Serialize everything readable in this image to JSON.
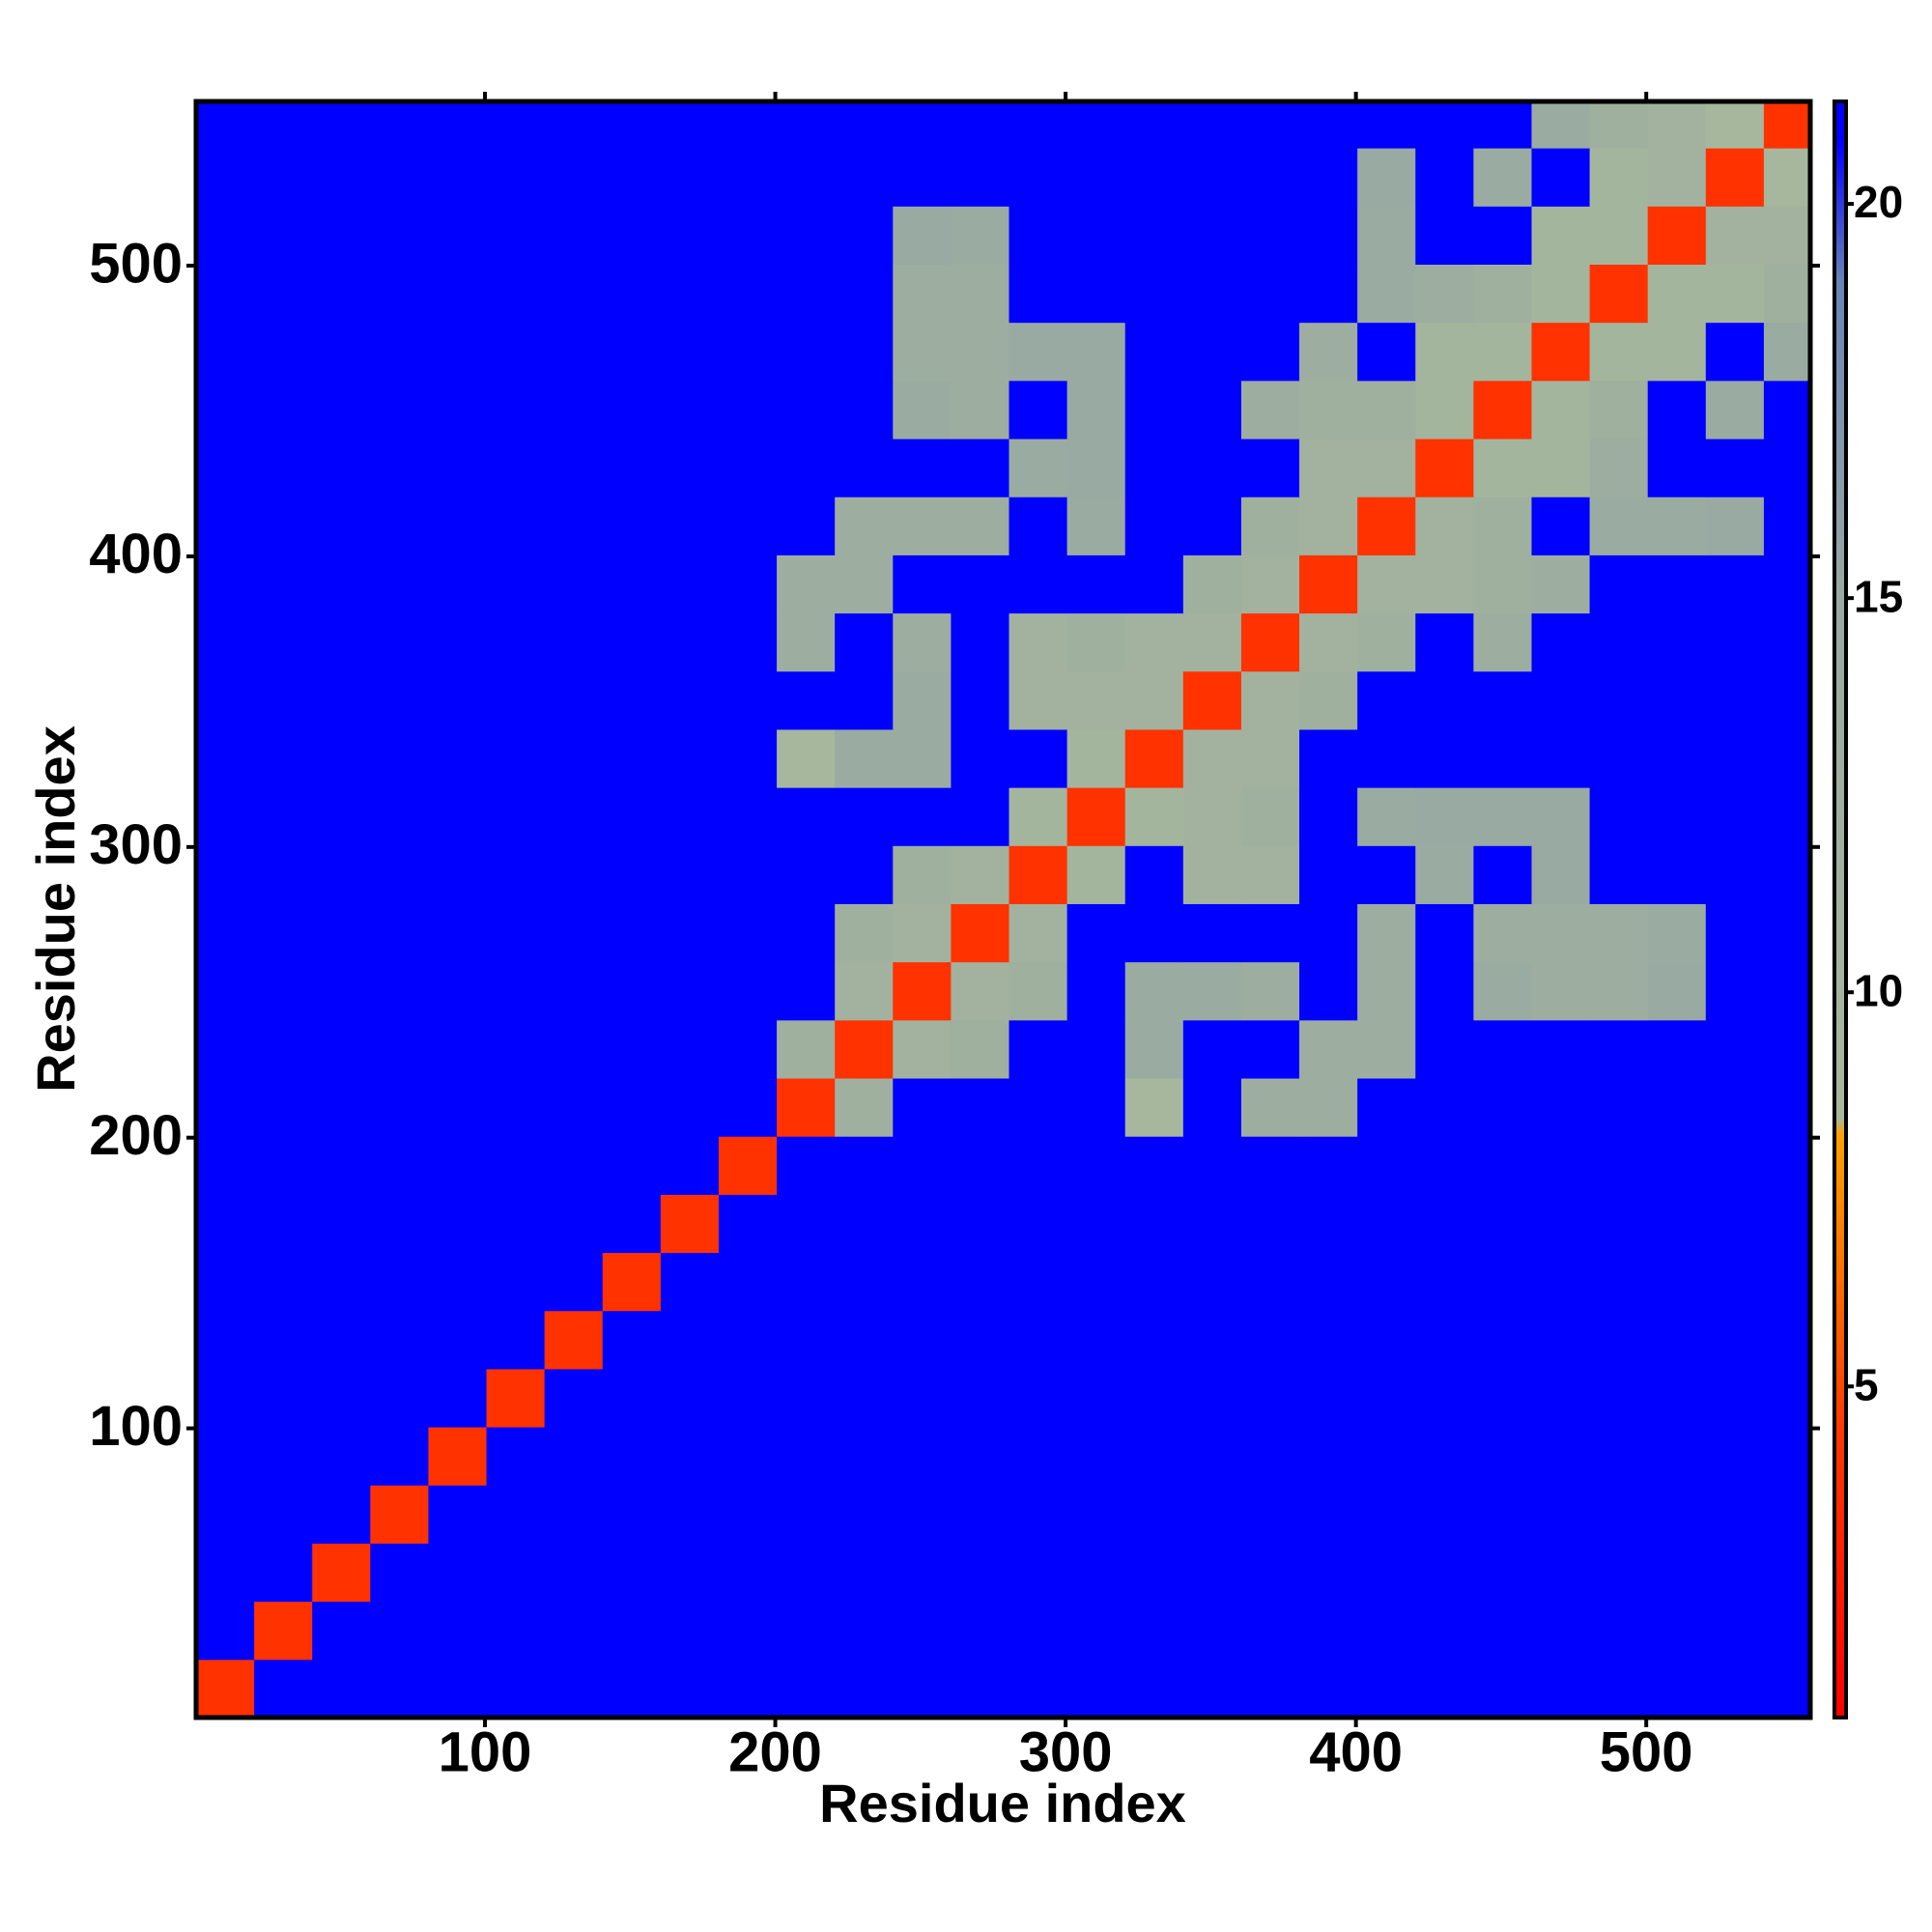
{
  "chart_data": {
    "type": "heatmap",
    "xlabel": "Residue index",
    "ylabel": "Residue index",
    "bins": [
      0.5,
      20.5,
      40.5,
      60.5,
      80.5,
      100.5,
      120.5,
      140.5,
      160.5,
      180.5,
      200.5,
      220.5,
      240.5,
      260.5,
      280.5,
      300.5,
      320.5,
      340.5,
      360.5,
      380.5,
      400.5,
      420.5,
      440.5,
      460.5,
      480.5,
      500.5,
      520.5,
      540.5,
      556.5
    ],
    "xlim": [
      0.5,
      556.5
    ],
    "ylim": [
      0.5,
      556.5
    ],
    "xticks": [
      100,
      200,
      300,
      400,
      500
    ],
    "yticks": [
      100,
      200,
      300,
      400,
      500
    ],
    "colorbar": {
      "lim": [
        0.8,
        21.3
      ],
      "ticks": [
        5,
        10,
        15,
        20
      ],
      "stops": [
        {
          "value": 0.8,
          "color": "#ff0000"
        },
        {
          "value": 4.5,
          "color": "#ff3a00"
        },
        {
          "value": 8.2,
          "color": "#ffa000"
        },
        {
          "value": 8.4,
          "color": "#a8b89c"
        },
        {
          "value": 15,
          "color": "#98aaa2"
        },
        {
          "value": 19,
          "color": "#6a84b6"
        },
        {
          "value": 20.8,
          "color": "#0000ff"
        },
        {
          "value": 21.3,
          "color": "#0000ff"
        }
      ]
    },
    "values": [
      [
        4,
        21,
        21,
        21,
        21,
        21,
        21,
        21,
        21,
        21,
        21,
        21,
        21,
        21,
        21,
        21,
        21,
        21,
        21,
        21,
        21,
        21,
        21,
        21,
        21,
        21,
        21,
        21
      ],
      [
        21,
        4,
        21,
        21,
        21,
        21,
        21,
        21,
        21,
        21,
        21,
        21,
        21,
        21,
        21,
        21,
        21,
        21,
        21,
        21,
        21,
        21,
        21,
        21,
        21,
        21,
        21,
        21
      ],
      [
        21,
        21,
        4,
        21,
        21,
        21,
        21,
        21,
        21,
        21,
        21,
        21,
        21,
        21,
        21,
        21,
        21,
        21,
        21,
        21,
        21,
        21,
        21,
        21,
        21,
        21,
        21,
        21
      ],
      [
        21,
        21,
        21,
        4,
        21,
        21,
        21,
        21,
        21,
        21,
        21,
        21,
        21,
        21,
        21,
        21,
        21,
        21,
        21,
        21,
        21,
        21,
        21,
        21,
        21,
        21,
        21,
        21
      ],
      [
        21,
        21,
        21,
        21,
        4,
        21,
        21,
        21,
        21,
        21,
        21,
        21,
        21,
        21,
        21,
        21,
        21,
        21,
        21,
        21,
        21,
        21,
        21,
        21,
        21,
        21,
        21,
        21
      ],
      [
        21,
        21,
        21,
        21,
        21,
        4,
        21,
        21,
        21,
        21,
        21,
        21,
        21,
        21,
        21,
        21,
        21,
        21,
        21,
        21,
        21,
        21,
        21,
        21,
        21,
        21,
        21,
        21
      ],
      [
        21,
        21,
        21,
        21,
        21,
        21,
        4,
        21,
        21,
        21,
        21,
        21,
        21,
        21,
        21,
        21,
        21,
        21,
        21,
        21,
        21,
        21,
        21,
        21,
        21,
        21,
        21,
        21
      ],
      [
        21,
        21,
        21,
        21,
        21,
        21,
        21,
        4,
        21,
        21,
        21,
        21,
        21,
        21,
        21,
        21,
        21,
        21,
        21,
        21,
        21,
        21,
        21,
        21,
        21,
        21,
        21,
        21
      ],
      [
        21,
        21,
        21,
        21,
        21,
        21,
        21,
        21,
        4,
        21,
        21,
        21,
        21,
        21,
        21,
        21,
        21,
        21,
        21,
        21,
        21,
        21,
        21,
        21,
        21,
        21,
        21,
        21
      ],
      [
        21,
        21,
        21,
        21,
        21,
        21,
        21,
        21,
        21,
        4,
        21,
        21,
        21,
        21,
        21,
        21,
        21,
        21,
        21,
        21,
        21,
        21,
        21,
        21,
        21,
        21,
        21,
        21
      ],
      [
        21,
        21,
        21,
        21,
        21,
        21,
        21,
        21,
        21,
        21,
        4,
        12,
        21,
        21,
        21,
        21,
        9,
        21,
        13,
        13,
        21,
        21,
        21,
        21,
        21,
        21,
        21,
        21
      ],
      [
        21,
        21,
        21,
        21,
        21,
        21,
        21,
        21,
        21,
        21,
        12,
        4,
        11,
        12,
        21,
        21,
        14,
        21,
        21,
        13,
        13,
        21,
        21,
        21,
        21,
        21,
        21,
        21
      ],
      [
        21,
        21,
        21,
        21,
        21,
        21,
        21,
        21,
        21,
        21,
        21,
        11,
        4,
        11,
        12,
        21,
        14,
        14,
        13,
        21,
        13,
        21,
        14,
        13,
        13,
        15,
        21,
        21
      ],
      [
        21,
        21,
        21,
        21,
        21,
        21,
        21,
        21,
        21,
        21,
        21,
        12,
        11,
        4,
        11,
        21,
        21,
        21,
        21,
        21,
        13,
        21,
        13,
        13,
        13,
        14,
        21,
        21
      ],
      [
        21,
        21,
        21,
        21,
        21,
        21,
        21,
        21,
        21,
        21,
        21,
        21,
        12,
        11,
        4,
        10,
        21,
        11,
        11,
        21,
        21,
        14,
        21,
        15,
        21,
        21,
        21,
        21
      ],
      [
        21,
        21,
        21,
        21,
        21,
        21,
        21,
        21,
        21,
        21,
        21,
        21,
        21,
        21,
        10,
        4,
        10,
        11,
        12,
        21,
        14,
        15,
        15,
        15,
        21,
        21,
        21,
        21
      ],
      [
        21,
        21,
        21,
        21,
        21,
        21,
        21,
        21,
        21,
        21,
        9,
        14,
        14,
        21,
        21,
        10,
        4,
        11,
        11,
        21,
        21,
        21,
        21,
        21,
        21,
        21,
        21,
        21
      ],
      [
        21,
        21,
        21,
        21,
        21,
        21,
        21,
        21,
        21,
        21,
        21,
        21,
        14,
        21,
        11,
        11,
        11,
        4,
        11,
        12,
        21,
        21,
        21,
        21,
        21,
        21,
        21,
        21
      ],
      [
        21,
        21,
        21,
        21,
        21,
        21,
        21,
        21,
        21,
        21,
        13,
        21,
        13,
        21,
        11,
        12,
        11,
        11,
        4,
        11,
        12,
        21,
        13,
        21,
        21,
        21,
        21,
        21
      ],
      [
        21,
        21,
        21,
        21,
        21,
        21,
        21,
        21,
        21,
        21,
        13,
        13,
        21,
        21,
        21,
        21,
        21,
        12,
        11,
        4,
        11,
        11,
        12,
        13,
        21,
        21,
        21,
        21
      ],
      [
        21,
        21,
        21,
        21,
        21,
        21,
        21,
        21,
        21,
        21,
        21,
        13,
        13,
        13,
        21,
        14,
        21,
        21,
        12,
        11,
        4,
        11,
        12,
        21,
        14,
        14,
        15,
        21
      ],
      [
        21,
        21,
        21,
        21,
        21,
        21,
        21,
        21,
        21,
        21,
        21,
        21,
        21,
        21,
        14,
        15,
        21,
        21,
        21,
        11,
        11,
        4,
        10,
        10,
        13,
        21,
        21,
        21
      ],
      [
        21,
        21,
        21,
        21,
        21,
        21,
        21,
        21,
        21,
        21,
        21,
        21,
        14,
        13,
        21,
        15,
        21,
        21,
        13,
        12,
        12,
        10,
        4,
        10,
        12,
        21,
        14,
        21
      ],
      [
        21,
        21,
        21,
        21,
        21,
        21,
        21,
        21,
        21,
        21,
        21,
        21,
        13,
        13,
        15,
        15,
        21,
        21,
        21,
        13,
        21,
        10,
        10,
        4,
        10,
        10,
        21,
        14
      ],
      [
        21,
        21,
        21,
        21,
        21,
        21,
        21,
        21,
        21,
        21,
        21,
        21,
        13,
        13,
        21,
        21,
        21,
        21,
        21,
        21,
        14,
        13,
        12,
        10,
        4,
        10,
        10,
        12
      ],
      [
        21,
        21,
        21,
        21,
        21,
        21,
        21,
        21,
        21,
        21,
        21,
        21,
        15,
        14,
        21,
        21,
        21,
        21,
        21,
        21,
        14,
        21,
        21,
        10,
        10,
        4,
        11,
        11
      ],
      [
        21,
        21,
        21,
        21,
        21,
        21,
        21,
        21,
        21,
        21,
        21,
        21,
        21,
        21,
        21,
        21,
        21,
        21,
        21,
        21,
        15,
        21,
        14,
        21,
        10,
        11,
        4,
        9
      ],
      [
        21,
        21,
        21,
        21,
        21,
        21,
        21,
        21,
        21,
        21,
        21,
        21,
        21,
        21,
        21,
        21,
        21,
        21,
        21,
        21,
        21,
        21,
        21,
        14,
        12,
        11,
        9,
        4
      ]
    ]
  }
}
